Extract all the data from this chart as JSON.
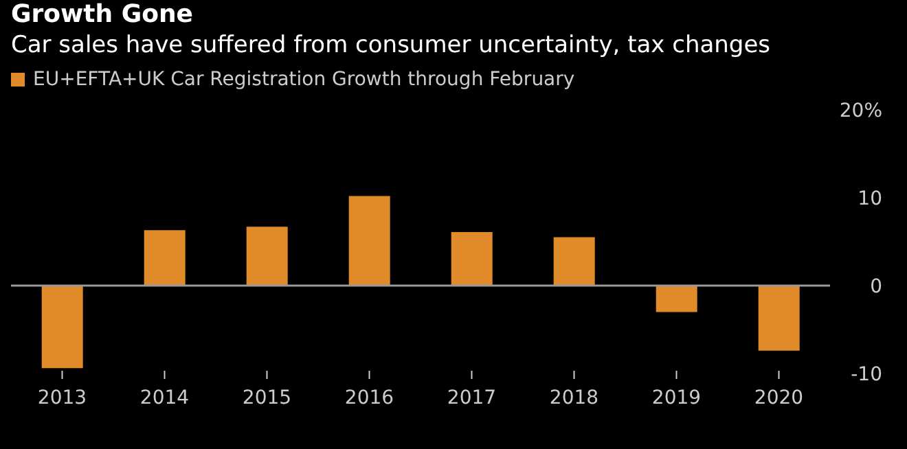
{
  "chart_data": {
    "type": "bar",
    "title": "Growth Gone",
    "subtitle": "Car sales have suffered from consumer uncertainty, tax changes",
    "categories": [
      "2013",
      "2014",
      "2015",
      "2016",
      "2017",
      "2018",
      "2019",
      "2020"
    ],
    "series": [
      {
        "name": "EU+EFTA+UK Car Registration Growth through February",
        "color": "#e08a2a",
        "values": [
          -9.4,
          6.3,
          6.7,
          10.2,
          6.1,
          5.5,
          -3.0,
          -7.4
        ]
      }
    ],
    "ylim": [
      -10,
      20
    ],
    "yticks": [
      {
        "value": 20,
        "label": "20%"
      },
      10,
      0,
      -10
    ],
    "ref_lines": [
      {
        "axis": "y",
        "value": 0,
        "color": "#999999"
      }
    ],
    "grid": false,
    "legend": "top left"
  }
}
